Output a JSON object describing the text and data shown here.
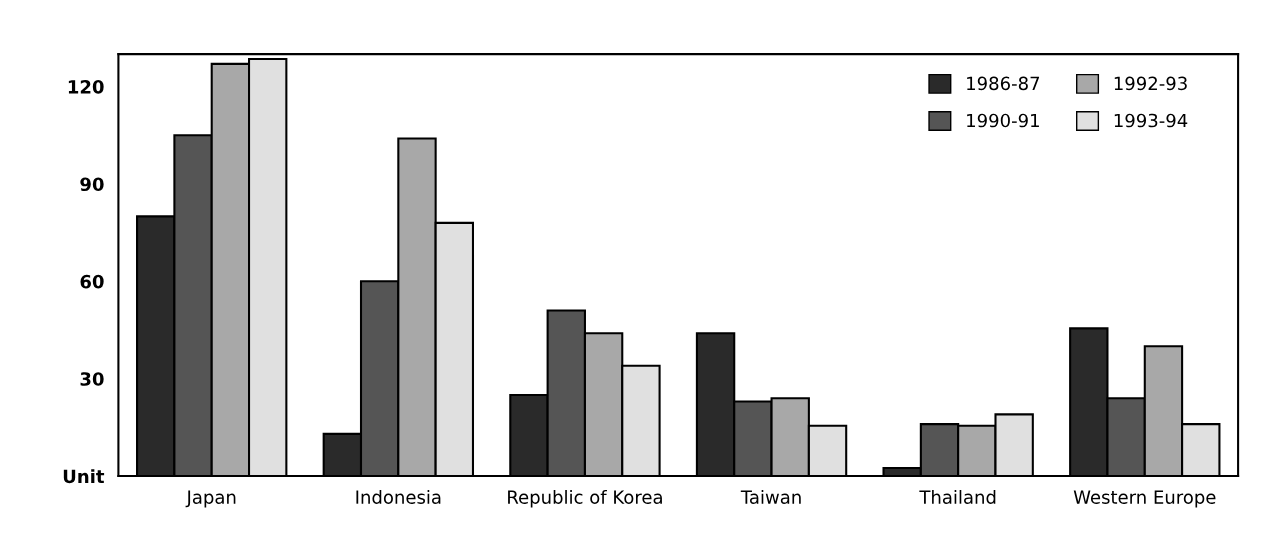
{
  "chart_data": {
    "type": "bar",
    "categories": [
      "Japan",
      "Indonesia",
      "Republic of Korea",
      "Taiwan",
      "Thailand",
      "Western Europe"
    ],
    "series": [
      {
        "name": "1986-87",
        "color": "#2a2a2a",
        "values": [
          80,
          13,
          25,
          44,
          2.5,
          45.5
        ]
      },
      {
        "name": "1990-91",
        "color": "#555555",
        "values": [
          105,
          60,
          51,
          23,
          16,
          24
        ]
      },
      {
        "name": "1992-93",
        "color": "#a8a8a8",
        "values": [
          127,
          104,
          44,
          24,
          15.5,
          40
        ]
      },
      {
        "name": "1993-94",
        "color": "#e0e0e0",
        "values": [
          128.5,
          78,
          34,
          15.5,
          19,
          16
        ]
      }
    ],
    "ylim": [
      0,
      130
    ],
    "yticks": [
      {
        "value": 0,
        "label": "Unit"
      },
      30,
      60,
      90,
      120
    ],
    "grid": false,
    "legend": "top right"
  }
}
